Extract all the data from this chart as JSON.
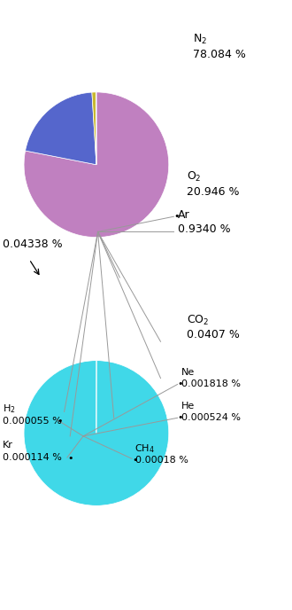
{
  "top_pie": {
    "values": [
      78.084,
      20.946,
      0.934,
      0.04338
    ],
    "colors": [
      "#c080c0",
      "#5566cc",
      "#c8b830",
      "#c080c0"
    ],
    "startangle": 90,
    "counterclock": false
  },
  "bottom_pie": {
    "values": [
      0.0407,
      0.001818,
      0.000524,
      0.00018,
      0.000114,
      5.5e-05,
      99.956
    ],
    "colors": [
      "#8B3A0F",
      "#ffb0b8",
      "#0000aa",
      "#888888",
      "#888888",
      "#888888",
      "#40d8e8"
    ],
    "startangle": 90,
    "counterclock": false
  },
  "background_color": "#ffffff"
}
